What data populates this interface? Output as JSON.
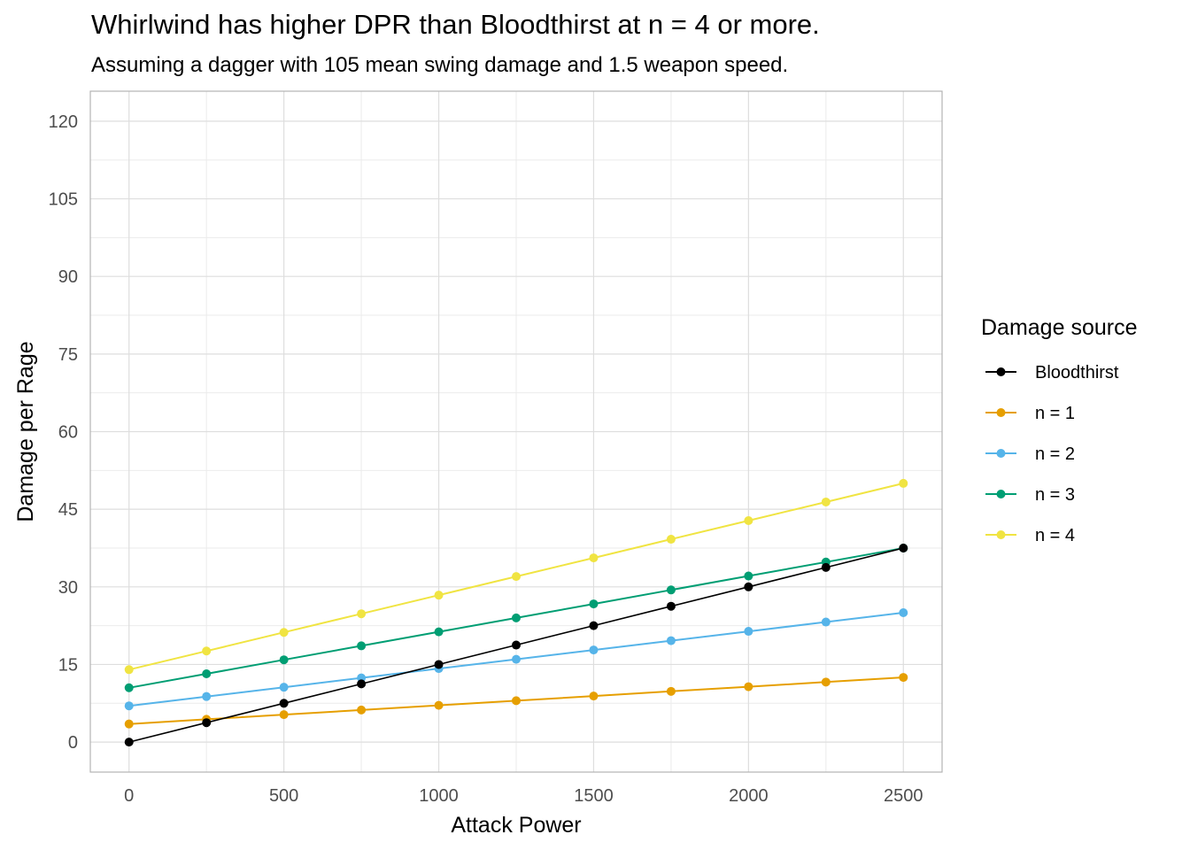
{
  "chart_data": {
    "type": "line",
    "title": "Whirlwind has higher DPR than Bloodthirst at n = 4 or more.",
    "subtitle": "Assuming a dagger with 105 mean swing damage and 1.5 weapon speed.",
    "xlabel": "Attack Power",
    "ylabel": "Damage per Rage",
    "xlim": [
      -125,
      2625
    ],
    "ylim": [
      -5.8,
      125.8
    ],
    "x_ticks": [
      0,
      500,
      1000,
      1500,
      2000,
      2500
    ],
    "y_ticks": [
      0,
      15,
      30,
      45,
      60,
      75,
      90,
      105,
      120
    ],
    "grid": true,
    "legend": {
      "title": "Damage source",
      "position": "right"
    },
    "x": [
      0,
      250,
      500,
      750,
      1000,
      1250,
      1500,
      1750,
      2000,
      2250,
      2500
    ],
    "series": [
      {
        "name": "Bloodthirst",
        "color": "#000000",
        "values": [
          0,
          3.75,
          7.5,
          11.25,
          15,
          18.75,
          22.5,
          26.25,
          30,
          33.75,
          37.5
        ]
      },
      {
        "name": "n = 1",
        "color": "#E69F00",
        "values": [
          3.5,
          4.4,
          5.3,
          6.2,
          7.1,
          8.0,
          8.9,
          9.8,
          10.7,
          11.6,
          12.5
        ]
      },
      {
        "name": "n = 2",
        "color": "#56B4E9",
        "values": [
          7.0,
          8.8,
          10.6,
          12.4,
          14.2,
          16.0,
          17.8,
          19.6,
          21.4,
          23.2,
          25.0
        ]
      },
      {
        "name": "n = 3",
        "color": "#009E73",
        "values": [
          10.5,
          13.2,
          15.9,
          18.6,
          21.3,
          24.0,
          26.7,
          29.4,
          32.1,
          34.8,
          37.5
        ]
      },
      {
        "name": "n = 4",
        "color": "#F0E442",
        "values": [
          14.0,
          17.6,
          21.2,
          24.8,
          28.4,
          32.0,
          35.6,
          39.2,
          42.8,
          46.4,
          50.0
        ]
      }
    ]
  }
}
